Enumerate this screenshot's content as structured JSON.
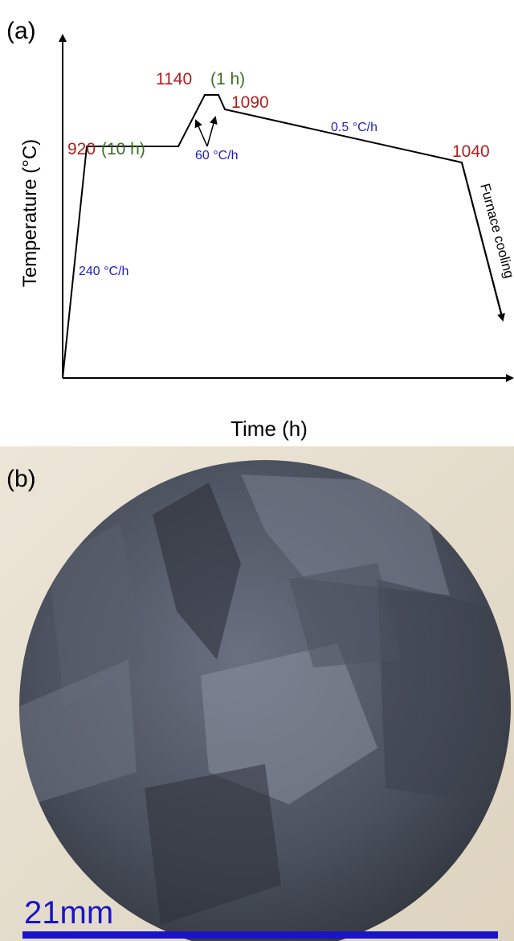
{
  "panel_a": {
    "label": "(a)",
    "y_axis_label": "Temperature (°C)",
    "x_axis_label": "Time (h)",
    "annotations": {
      "t1": "920",
      "d1": "(10 h)",
      "t2": "1140",
      "d2": "(1 h)",
      "t3": "1090",
      "t4": "1040",
      "r1": "240 °C/h",
      "r2": "60 °C/h",
      "r3": "0.5 °C/h",
      "cooling": "Furnace cooling"
    }
  },
  "panel_b": {
    "label": "(b)",
    "scale_bar": "21mm"
  }
}
